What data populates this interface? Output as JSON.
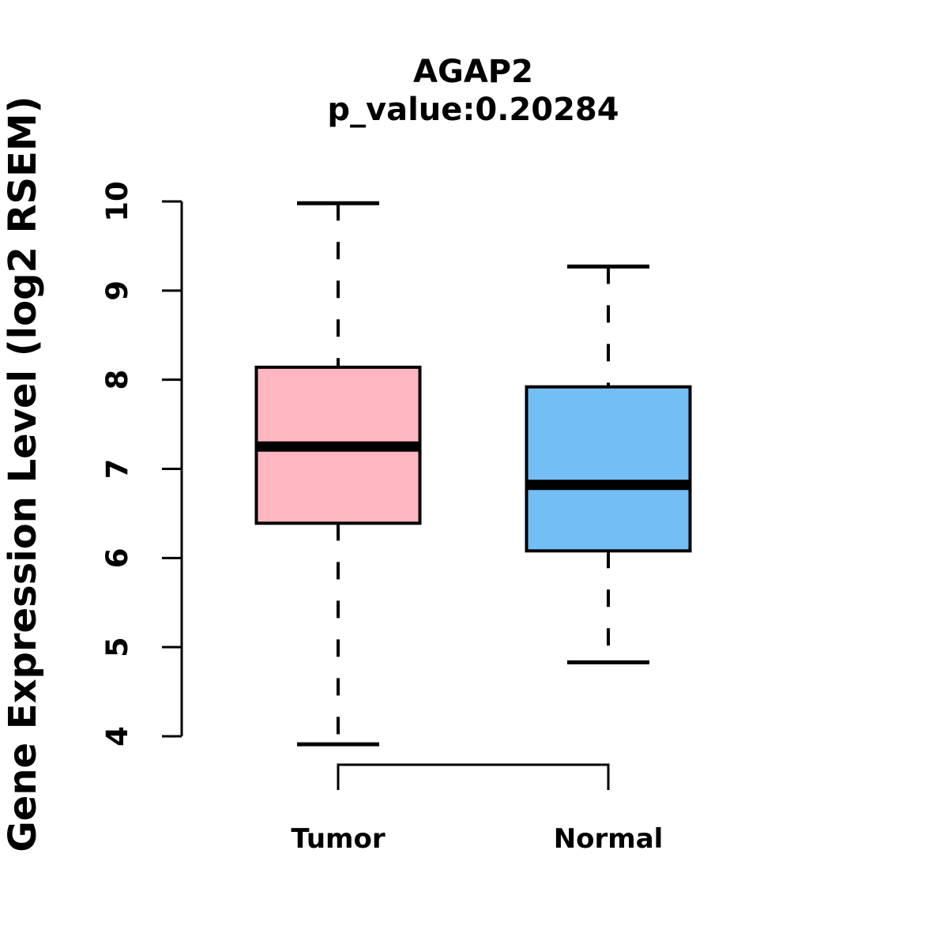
{
  "title": "AGAP2",
  "subtitle": "p_value:0.20284",
  "colors": {
    "tumor_fill": "#FFB6C1",
    "normal_fill": "#74BEF6",
    "line": "#000000",
    "background": "#FFFFFF"
  },
  "chart_data": {
    "type": "boxplot",
    "title": "AGAP2",
    "subtitle": "p_value:0.20284",
    "p_value": "0.20284",
    "ylabel": "Gene Expression Level (log2 RSEM)",
    "xlabel": "",
    "categories": [
      "Tumor",
      "Normal"
    ],
    "series": [
      {
        "name": "Tumor",
        "min": 3.91,
        "q1": 6.39,
        "median": 7.25,
        "q3": 8.14,
        "max": 9.98,
        "color": "#FFB6C1"
      },
      {
        "name": "Normal",
        "min": 4.83,
        "q1": 6.08,
        "median": 6.82,
        "q3": 7.92,
        "max": 9.27,
        "color": "#74BEF6"
      }
    ],
    "yticks": [
      4,
      5,
      6,
      7,
      8,
      9,
      10
    ],
    "ylim": [
      4,
      10
    ],
    "grid": false,
    "legend": "none",
    "whisker_style": "dashed"
  }
}
